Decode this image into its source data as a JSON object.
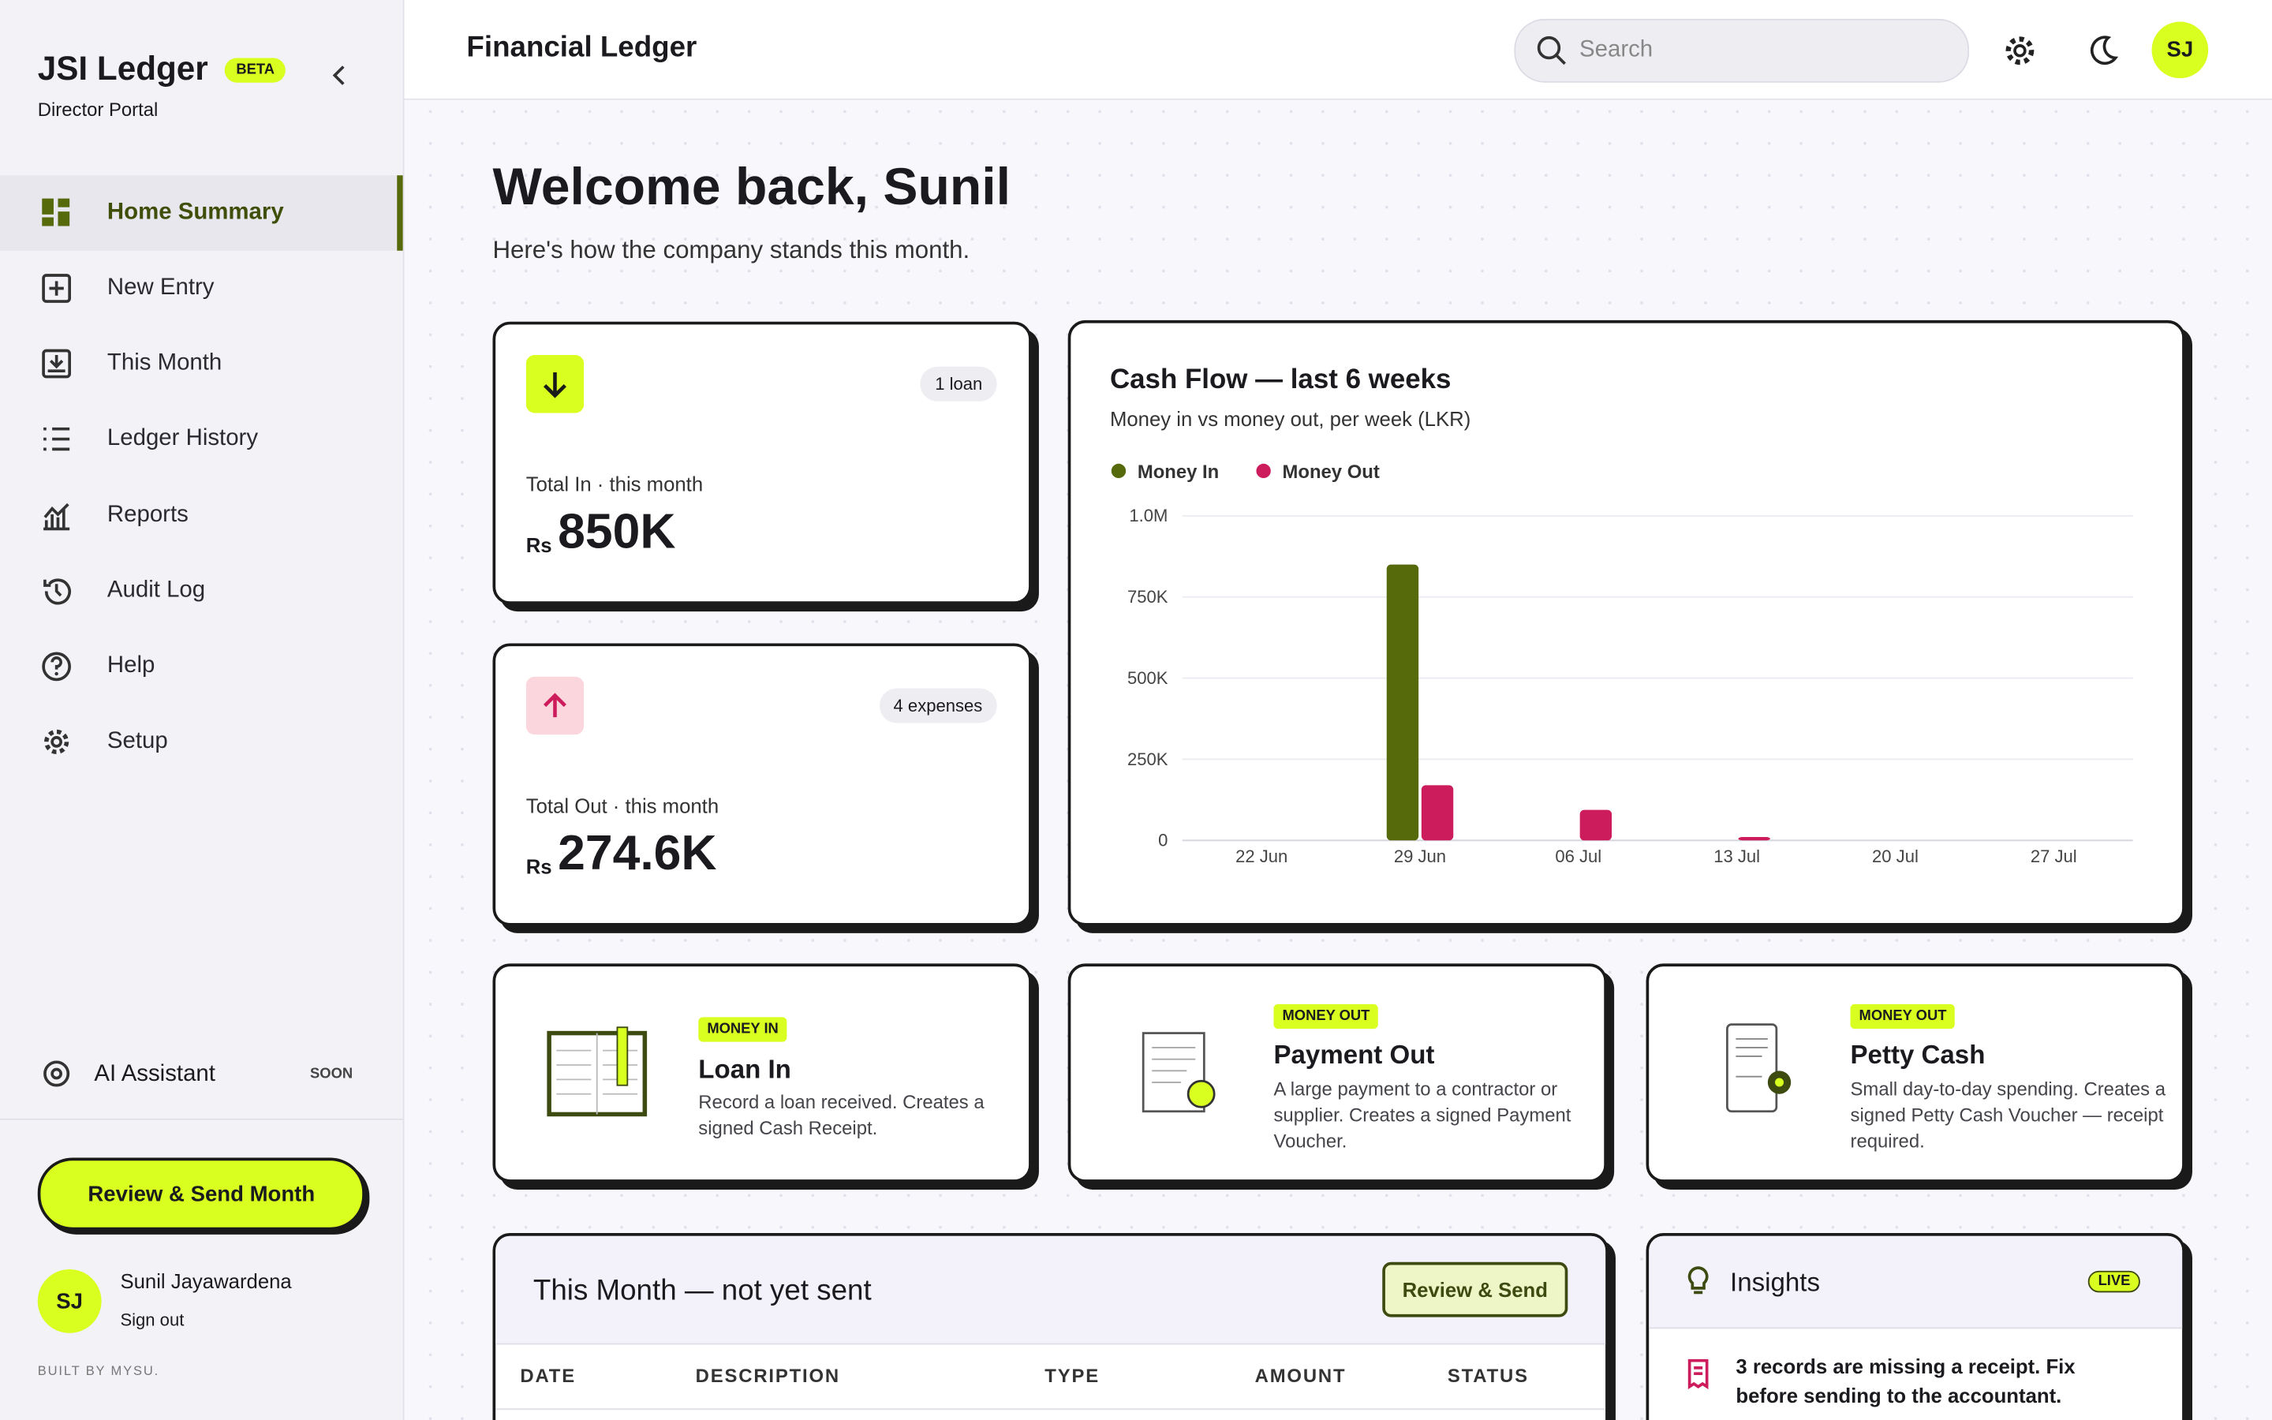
{
  "sidebar": {
    "brand": "JSI Ledger",
    "badge": "BETA",
    "subtitle": "Director Portal",
    "nav": [
      "Home Summary",
      "New Entry",
      "This Month",
      "Ledger History",
      "Reports",
      "Audit Log",
      "Help",
      "Setup"
    ],
    "assistant": "AI Assistant",
    "assistant_badge": "SOON",
    "cta": "Review & Send Month",
    "user_initials": "SJ",
    "user_name": "Sunil Jayawardena",
    "sign_out": "Sign out",
    "footer": "BUILT BY MYSU."
  },
  "header": {
    "title": "Financial Ledger",
    "search_placeholder": "Search",
    "avatar": "SJ"
  },
  "welcome": {
    "title": "Welcome back, Sunil",
    "subtitle": "Here's how the company stands this month."
  },
  "stats": [
    {
      "badge": "1 loan",
      "label": "Total In · this month",
      "currency": "Rs",
      "value": "850K"
    },
    {
      "badge": "4 expenses",
      "label": "Total Out · this month",
      "currency": "Rs",
      "value": "274.6K"
    }
  ],
  "chart_data": {
    "type": "bar",
    "title": "Cash Flow — last 6 weeks",
    "subtitle": "Money in vs money out, per week (LKR)",
    "categories": [
      "22 Jun",
      "29 Jun",
      "06 Jul",
      "13 Jul",
      "20 Jul",
      "27 Jul"
    ],
    "series": [
      {
        "name": "Money In",
        "color": "#566a0c",
        "values": [
          0,
          850000,
          0,
          0,
          0,
          0
        ]
      },
      {
        "name": "Money Out",
        "color": "#cc1c5c",
        "values": [
          0,
          170000,
          94000,
          10600,
          0,
          0
        ]
      }
    ],
    "ylim": [
      0,
      1000000
    ],
    "yticks": [
      0,
      {
        "value": 250000,
        "label": "250K"
      },
      {
        "value": 500000,
        "label": "500K"
      },
      {
        "value": 750000,
        "label": "750K"
      },
      {
        "value": 1000000,
        "label": "1.0M"
      }
    ],
    "grid": true,
    "legend": "top-left"
  },
  "actions": [
    {
      "tag": "MONEY IN",
      "title": "Loan In",
      "description": "Record a loan received. Creates a signed Cash Receipt."
    },
    {
      "tag": "MONEY OUT",
      "title": "Payment Out",
      "description": "A large payment to a contractor or supplier. Creates a signed Payment Voucher."
    },
    {
      "tag": "MONEY OUT",
      "title": "Petty Cash",
      "description": "Small day-to-day spending. Creates a signed Petty Cash Voucher — receipt required."
    }
  ],
  "pending": {
    "title": "This Month — not yet sent",
    "button": "Review & Send",
    "columns": [
      "DATE",
      "DESCRIPTION",
      "TYPE",
      "AMOUNT",
      "STATUS"
    ]
  },
  "insights": {
    "title": "Insights",
    "badge": "LIVE",
    "items": [
      "3 records are missing a receipt. Fix before sending to the accountant."
    ]
  }
}
